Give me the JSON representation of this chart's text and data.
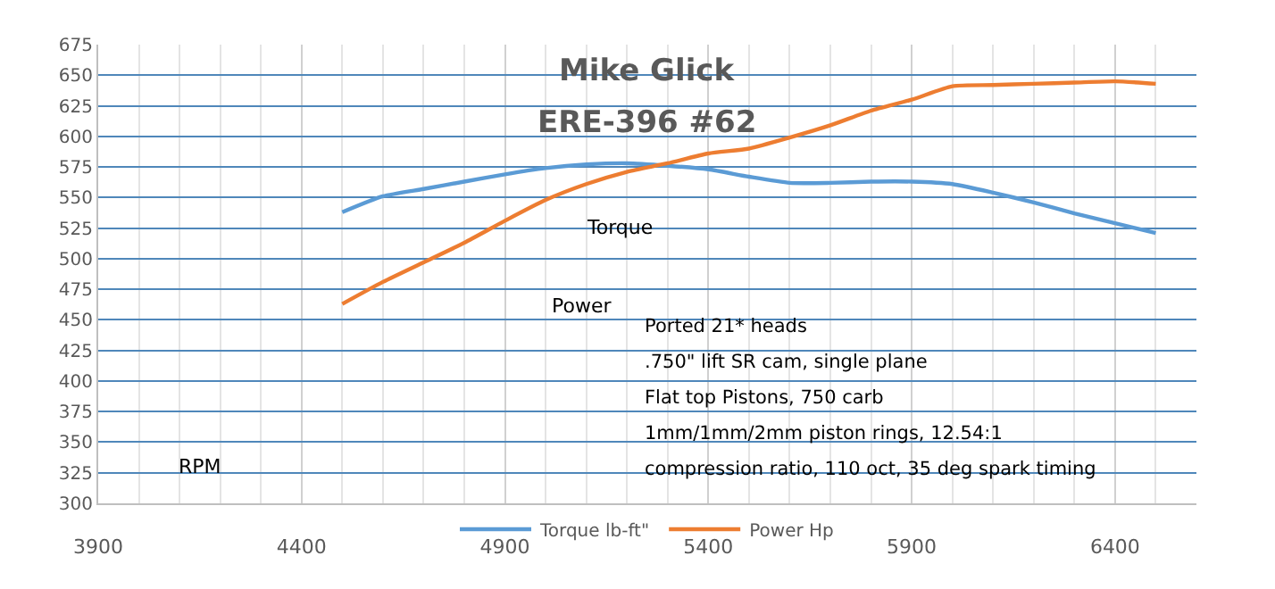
{
  "chart_data": {
    "type": "line",
    "title": "Mike Glick",
    "subtitle": "ERE-396 #62",
    "x": [
      4500,
      4600,
      4700,
      4800,
      4900,
      5000,
      5100,
      5200,
      5300,
      5400,
      5500,
      5600,
      5700,
      5800,
      5900,
      6000,
      6100,
      6200,
      6300,
      6400,
      6500
    ],
    "series": [
      {
        "name": "Torque lb-ft\"",
        "color": "#5b9bd5",
        "values": [
          538,
          551,
          557,
          563,
          569,
          574,
          577,
          578,
          576,
          573,
          567,
          562,
          562,
          563,
          563,
          561,
          554,
          546,
          537,
          529,
          521
        ]
      },
      {
        "name": "Power Hp",
        "color": "#ed7d31",
        "values": [
          463,
          481,
          497,
          513,
          531,
          548,
          561,
          571,
          578,
          586,
          590,
          599,
          609,
          621,
          630,
          641,
          642,
          643,
          644,
          645,
          643
        ]
      }
    ],
    "xlim": [
      3900,
      6600
    ],
    "xticks": [
      3900,
      4400,
      4900,
      5400,
      5900,
      6400
    ],
    "ylim": [
      300,
      675
    ],
    "yticks": [
      300,
      325,
      350,
      375,
      400,
      425,
      450,
      475,
      500,
      525,
      550,
      575,
      600,
      625,
      650,
      675
    ],
    "grid": true,
    "legend": "bottom",
    "marker": "none",
    "line_style": "solid",
    "annotations": [
      "Torque",
      "Power",
      "RPM",
      "Ported 21* heads",
      ".750\" lift SR cam, single plane",
      "Flat top Pistons, 750 carb",
      "1mm/1mm/2mm piston rings, 12.54:1",
      "compression ratio, 110 oct, 35 deg spark timing"
    ]
  }
}
